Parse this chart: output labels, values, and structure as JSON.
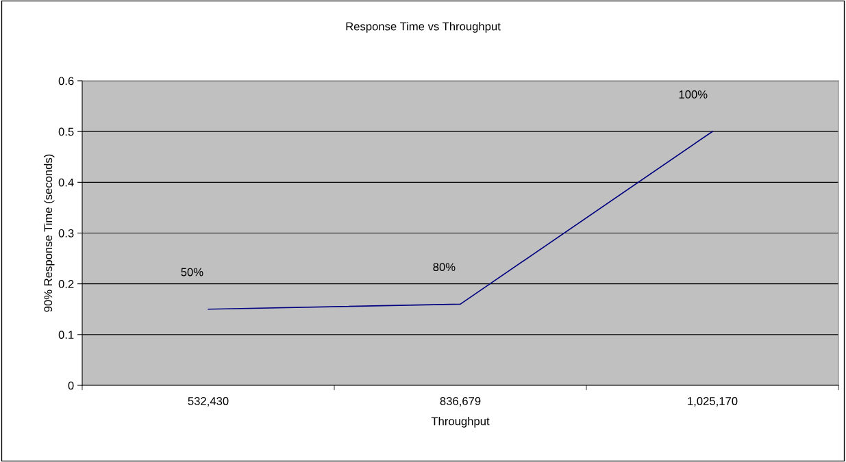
{
  "chart_data": {
    "type": "line",
    "title": "Response Time vs Throughput",
    "xlabel": "Throughput",
    "ylabel": "90% Response Time (seconds)",
    "categories": [
      "532,430",
      "836,679",
      "1,025,170"
    ],
    "series": [
      {
        "color": "#000080",
        "values": [
          0.15,
          0.16,
          0.5
        ]
      }
    ],
    "ylim": [
      0,
      0.6
    ],
    "yticks": [
      0,
      0.1,
      0.2,
      0.3,
      0.4,
      0.5,
      0.6
    ],
    "grid": "y",
    "marker": "none",
    "line_style": "solid",
    "legend": false,
    "annotations": [
      {
        "text": "50%",
        "x": "532,430",
        "y": 0.15
      },
      {
        "text": "80%",
        "x": "836,679",
        "y": 0.16
      },
      {
        "text": "100%",
        "x": "1,025,170",
        "y": 0.5
      }
    ]
  }
}
